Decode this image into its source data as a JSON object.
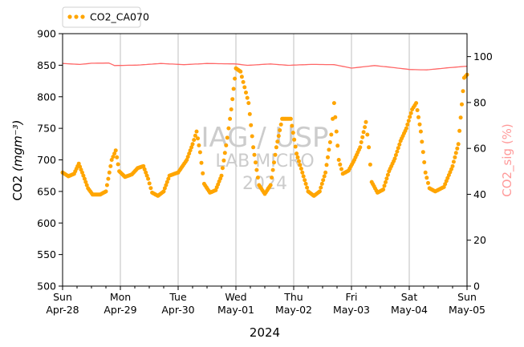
{
  "chart_data": {
    "type": "scatter",
    "xlabel": "2024",
    "ylabel": "CO2",
    "ylabel_unit": "(mgm⁻³)",
    "y2label": "CO2_sig (%)",
    "ylim": [
      500,
      900
    ],
    "y2lim": [
      0,
      110
    ],
    "yticks": [
      500,
      550,
      600,
      650,
      700,
      750,
      800,
      850,
      900
    ],
    "y2ticks": [
      0,
      20,
      40,
      60,
      80,
      100
    ],
    "xlim_days": [
      0,
      7
    ],
    "xticks": [
      {
        "day": "Sun",
        "date": "Apr-28"
      },
      {
        "day": "Mon",
        "date": "Apr-29"
      },
      {
        "day": "Tue",
        "date": "Apr-30"
      },
      {
        "day": "Wed",
        "date": "May-01"
      },
      {
        "day": "Thu",
        "date": "May-02"
      },
      {
        "day": "Fri",
        "date": "May-03"
      },
      {
        "day": "Sat",
        "date": "May-04"
      },
      {
        "day": "Sun",
        "date": "May-05"
      }
    ],
    "grid": "vertical",
    "legend": {
      "placement": "top-left",
      "label": "CO2_CA070"
    },
    "watermark": [
      "IAG / USP",
      "LAB MICRO",
      "2024"
    ],
    "colors": {
      "points": "#ffa500",
      "sig_line": "#ff6666",
      "y2_label": "#ff9999",
      "grid": "#bfbfbf",
      "watermark": "#cccccc"
    },
    "series": [
      {
        "name": "CO2_CA070",
        "axis": "left",
        "style": "points",
        "anchors": [
          [
            0.0,
            680
          ],
          [
            0.1,
            674
          ],
          [
            0.2,
            678
          ],
          [
            0.28,
            694
          ],
          [
            0.36,
            675
          ],
          [
            0.44,
            655
          ],
          [
            0.52,
            645
          ],
          [
            0.65,
            645
          ],
          [
            0.75,
            650
          ],
          [
            0.85,
            700
          ],
          [
            0.92,
            715
          ],
          [
            0.98,
            682
          ],
          [
            1.08,
            673
          ],
          [
            1.2,
            677
          ],
          [
            1.3,
            687
          ],
          [
            1.4,
            690
          ],
          [
            1.48,
            670
          ],
          [
            1.55,
            648
          ],
          [
            1.65,
            643
          ],
          [
            1.75,
            650
          ],
          [
            1.85,
            675
          ],
          [
            2.0,
            680
          ],
          [
            2.15,
            700
          ],
          [
            2.25,
            725
          ],
          [
            2.32,
            745
          ],
          [
            2.38,
            712
          ],
          [
            2.45,
            662
          ],
          [
            2.55,
            648
          ],
          [
            2.65,
            652
          ],
          [
            2.75,
            675
          ],
          [
            2.85,
            735
          ],
          [
            2.92,
            780
          ],
          [
            3.0,
            845
          ],
          [
            3.08,
            840
          ],
          [
            3.15,
            815
          ],
          [
            3.22,
            790
          ],
          [
            3.3,
            720
          ],
          [
            3.4,
            660
          ],
          [
            3.5,
            646
          ],
          [
            3.6,
            660
          ],
          [
            3.7,
            720
          ],
          [
            3.8,
            765
          ],
          [
            3.88,
            765
          ],
          [
            3.95,
            765
          ],
          [
            4.05,
            710
          ],
          [
            4.15,
            680
          ],
          [
            4.25,
            650
          ],
          [
            4.35,
            643
          ],
          [
            4.45,
            650
          ],
          [
            4.55,
            680
          ],
          [
            4.65,
            740
          ],
          [
            4.7,
            790
          ],
          [
            4.78,
            700
          ],
          [
            4.85,
            678
          ],
          [
            4.95,
            683
          ],
          [
            5.05,
            700
          ],
          [
            5.15,
            720
          ],
          [
            5.25,
            760
          ],
          [
            5.3,
            720
          ],
          [
            5.35,
            665
          ],
          [
            5.45,
            648
          ],
          [
            5.55,
            653
          ],
          [
            5.65,
            682
          ],
          [
            5.75,
            702
          ],
          [
            5.85,
            730
          ],
          [
            5.95,
            750
          ],
          [
            6.05,
            780
          ],
          [
            6.12,
            790
          ],
          [
            6.2,
            745
          ],
          [
            6.28,
            680
          ],
          [
            6.35,
            655
          ],
          [
            6.45,
            650
          ],
          [
            6.6,
            657
          ],
          [
            6.75,
            690
          ],
          [
            6.85,
            725
          ],
          [
            6.95,
            830
          ],
          [
            7.0,
            835
          ]
        ]
      },
      {
        "name": "CO2_sig",
        "axis": "right",
        "style": "line",
        "anchors": [
          [
            0.0,
            97.0
          ],
          [
            0.3,
            96.6
          ],
          [
            0.5,
            97.1
          ],
          [
            0.8,
            97.2
          ],
          [
            0.9,
            96.1
          ],
          [
            1.3,
            96.3
          ],
          [
            1.7,
            97.0
          ],
          [
            2.1,
            96.5
          ],
          [
            2.5,
            97.0
          ],
          [
            3.0,
            96.8
          ],
          [
            3.2,
            96.2
          ],
          [
            3.6,
            96.8
          ],
          [
            3.9,
            96.2
          ],
          [
            4.3,
            96.6
          ],
          [
            4.7,
            96.5
          ],
          [
            5.0,
            95.0
          ],
          [
            5.4,
            96.1
          ],
          [
            5.7,
            95.3
          ],
          [
            6.0,
            94.4
          ],
          [
            6.3,
            94.2
          ],
          [
            6.7,
            95.2
          ],
          [
            7.0,
            95.8
          ]
        ]
      }
    ]
  }
}
